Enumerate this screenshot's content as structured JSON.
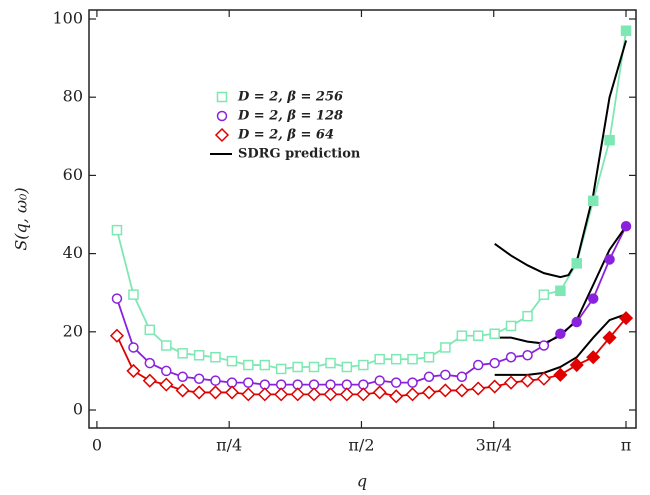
{
  "chart_data": {
    "type": "line",
    "xlabel": "q",
    "ylabel": "S(q, ω₀)",
    "xlim": [
      -0.047,
      3.201
    ],
    "ylim": [
      -4.6,
      102.3
    ],
    "xticks": [
      {
        "value": 0,
        "label": "0"
      },
      {
        "value": 0.7854,
        "label": "π/4"
      },
      {
        "value": 1.5708,
        "label": "π/2"
      },
      {
        "value": 2.3562,
        "label": "3π/4"
      },
      {
        "value": 3.1416,
        "label": "π"
      }
    ],
    "yticks": [
      0,
      20,
      40,
      60,
      80,
      100
    ],
    "x": [
      0.119,
      0.217,
      0.314,
      0.412,
      0.509,
      0.607,
      0.704,
      0.802,
      0.899,
      0.997,
      1.094,
      1.192,
      1.289,
      1.387,
      1.484,
      1.582,
      1.679,
      1.777,
      1.874,
      1.972,
      2.069,
      2.167,
      2.264,
      2.362,
      2.459,
      2.557,
      2.654,
      2.752,
      2.849,
      2.947,
      3.044,
      3.142
    ],
    "series": [
      {
        "name": "D = 2, β = 256",
        "color": "#7ee8b4",
        "marker": "square",
        "filled_from": 27,
        "values": [
          46,
          29.5,
          20.5,
          16.5,
          14.5,
          14,
          13.5,
          12.5,
          11.5,
          11.5,
          10.5,
          11,
          11,
          12,
          11,
          11.5,
          13,
          13,
          13,
          13.5,
          16,
          19,
          19,
          19.5,
          21.5,
          24,
          29.5,
          30.5,
          37.5,
          53.5,
          69,
          97
        ]
      },
      {
        "name": "D = 2, β = 128",
        "color": "#8a22dd",
        "marker": "circle",
        "filled_from": 27,
        "values": [
          28.5,
          16,
          12,
          10,
          8.5,
          8,
          7.5,
          7,
          7,
          6.5,
          6.5,
          6.5,
          6.5,
          6.5,
          6.5,
          6.5,
          7.5,
          7,
          7,
          8.5,
          9,
          8.5,
          11.5,
          12,
          13.5,
          14,
          16.5,
          19.5,
          22.5,
          28.5,
          38.5,
          47
        ]
      },
      {
        "name": "D = 2, β = 64",
        "color": "#e00000",
        "marker": "diamond",
        "filled_from": 27,
        "values": [
          19,
          10,
          7.5,
          6.5,
          5,
          4.5,
          4.5,
          4.5,
          4,
          4,
          4,
          4,
          4,
          4,
          4,
          4,
          4.5,
          3.5,
          4,
          4.5,
          5,
          5,
          5.5,
          6,
          7,
          7.5,
          8,
          9,
          11.5,
          13.5,
          18.5,
          23.5
        ]
      }
    ],
    "prediction": {
      "name": "SDRG prediction",
      "color": "#000000",
      "curves": [
        {
          "x": [
            2.362,
            2.459,
            2.557,
            2.654,
            2.752,
            2.8,
            2.849,
            2.947,
            3.044,
            3.142
          ],
          "values": [
            42.5,
            39.5,
            37,
            35,
            34,
            34.5,
            38,
            55,
            80,
            94.5
          ]
        },
        {
          "x": [
            2.362,
            2.459,
            2.557,
            2.654,
            2.752,
            2.849,
            2.947,
            3.044,
            3.142
          ],
          "values": [
            18.5,
            18.5,
            17.5,
            17,
            19,
            23,
            32,
            41,
            47
          ]
        },
        {
          "x": [
            2.362,
            2.459,
            2.557,
            2.654,
            2.752,
            2.849,
            2.947,
            3.044,
            3.142
          ],
          "values": [
            9,
            9,
            9,
            9.5,
            11,
            13.5,
            18.5,
            23,
            24.5
          ]
        }
      ]
    }
  }
}
